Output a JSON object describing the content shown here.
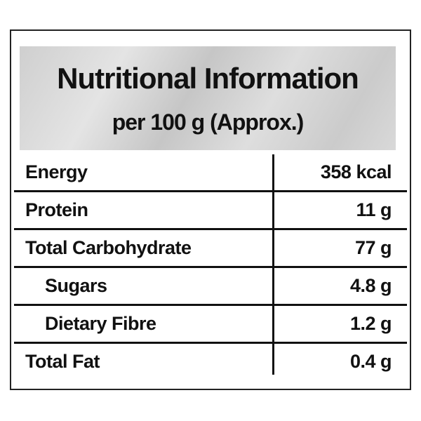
{
  "header": {
    "title": "Nutritional Information",
    "subtitle": "per 100 g (Approx.)"
  },
  "table": {
    "rows": [
      {
        "label": "Energy",
        "value": "358 kcal"
      },
      {
        "label": "Protein",
        "value": "11 g"
      },
      {
        "label": "Total Carbohydrate",
        "value": "77 g",
        "sub_rows": [
          {
            "label": "Sugars",
            "value": "4.8 g"
          },
          {
            "label": "Dietary Fibre",
            "value": "1.2 g"
          }
        ]
      },
      {
        "label": "Total Fat",
        "value": "0.4 g"
      }
    ]
  }
}
